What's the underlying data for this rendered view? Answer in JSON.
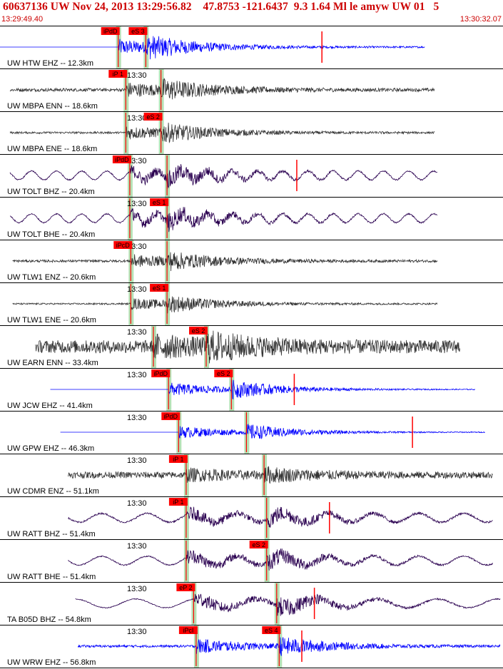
{
  "header": {
    "title": "60637136 UW Nov 24, 2013 13:29:56.82    47.8753 -121.6437  9.3 1.64 Ml le amyw UW 01   5",
    "start_time": "13:29:49.40",
    "end_time": "13:30:32.07"
  },
  "colors": {
    "pick_red": "#ff0000",
    "window_green": "#a8dca8",
    "trace_blue": "#0000ff",
    "trace_dark": "#333333",
    "trace_purple": "#2a0050"
  },
  "chart_data": {
    "type": "seismogram",
    "time_axis": {
      "start": "13:29:49.40",
      "end": "13:30:32.07",
      "tick_label": "13:30"
    },
    "traces": [
      {
        "label": "UW HTW EHZ -- 12.3km",
        "color": "blue",
        "amp": 0.38,
        "noise": 0.04,
        "onset": 0.235,
        "scode": 0.29,
        "t0": 0.0,
        "t1": 0.845,
        "flat_pre": true,
        "period": 0,
        "picks": [
          {
            "label": "iPdD",
            "x": 0.235
          },
          {
            "label": "eS 3",
            "x": 0.29
          }
        ],
        "marks": [
          0.64
        ]
      },
      {
        "label": "UW MBPA ENN -- 18.6km",
        "color": "dark",
        "amp": 0.34,
        "noise": 0.08,
        "onset": 0.25,
        "scode": 0.32,
        "t0": 0.02,
        "t1": 0.865,
        "period": 0,
        "picks": [
          {
            "label": "iP 1",
            "x": 0.25
          }
        ],
        "marks": []
      },
      {
        "label": "UW MBPA ENE -- 18.6km",
        "color": "dark",
        "amp": 0.32,
        "noise": 0.05,
        "onset": 0.25,
        "scode": 0.32,
        "t0": 0.02,
        "t1": 0.865,
        "period": 0,
        "picks": [
          {
            "label": "eS 2",
            "x": 0.32
          }
        ],
        "marks": []
      },
      {
        "label": "UW TOLT BHZ -- 20.4km",
        "color": "purple",
        "amp": 0.3,
        "noise": 0.03,
        "onset": 0.258,
        "scode": 0.332,
        "t0": 0.02,
        "t1": 0.87,
        "period": 0.05,
        "picks": [
          {
            "label": "iPdD",
            "x": 0.258
          }
        ],
        "marks": [
          0.59
        ]
      },
      {
        "label": "UW TOLT BHE -- 20.4km",
        "color": "purple",
        "amp": 0.3,
        "noise": 0.03,
        "onset": 0.258,
        "scode": 0.332,
        "t0": 0.02,
        "t1": 0.87,
        "period": 0.05,
        "picks": [
          {
            "label": "eS 1",
            "x": 0.332
          }
        ],
        "marks": []
      },
      {
        "label": "UW TLW1 ENZ -- 20.6km",
        "color": "dark",
        "amp": 0.3,
        "noise": 0.06,
        "onset": 0.26,
        "scode": 0.332,
        "t0": 0.025,
        "t1": 0.87,
        "period": 0,
        "picks": [
          {
            "label": "iPcD",
            "x": 0.26
          }
        ],
        "marks": []
      },
      {
        "label": "UW TLW1 ENE -- 20.6km",
        "color": "dark",
        "amp": 0.28,
        "noise": 0.04,
        "onset": 0.26,
        "scode": 0.332,
        "t0": 0.025,
        "t1": 0.87,
        "period": 0,
        "picks": [
          {
            "label": "eS 1",
            "x": 0.332
          }
        ],
        "marks": []
      },
      {
        "label": "UW EARN ENN -- 33.4km",
        "color": "dark",
        "amp": 0.4,
        "noise": 0.32,
        "onset": 0.305,
        "scode": 0.41,
        "t0": 0.07,
        "t1": 0.915,
        "period": 0,
        "picks": [
          {
            "label": "eS 2",
            "x": 0.41
          }
        ],
        "marks": []
      },
      {
        "label": "UW JCW EHZ -- 41.4km",
        "color": "blue",
        "amp": 0.34,
        "noise": 0.02,
        "onset": 0.335,
        "scode": 0.46,
        "t0": 0.1,
        "t1": 0.945,
        "flat_pre": true,
        "period": 0,
        "picks": [
          {
            "label": "iPdD",
            "x": 0.335
          },
          {
            "label": "eS 2",
            "x": 0.46
          }
        ],
        "marks": [
          0.585
        ]
      },
      {
        "label": "UW GPW EHZ -- 46.3km",
        "color": "blue",
        "amp": 0.3,
        "noise": 0.02,
        "onset": 0.355,
        "scode": 0.49,
        "t0": 0.12,
        "t1": 0.965,
        "flat_pre": true,
        "period": 0,
        "picks": [
          {
            "label": "iPdD",
            "x": 0.355
          }
        ],
        "marks": [
          0.82
        ]
      },
      {
        "label": "UW CDMR ENZ -- 51.1km",
        "color": "dark",
        "amp": 0.24,
        "noise": 0.16,
        "onset": 0.37,
        "scode": 0.525,
        "t0": 0.135,
        "t1": 0.98,
        "period": 0,
        "picks": [
          {
            "label": "iP 1",
            "x": 0.37
          }
        ],
        "marks": []
      },
      {
        "label": "UW RATT BHZ -- 51.4km",
        "color": "purple",
        "amp": 0.34,
        "noise": 0.04,
        "onset": 0.37,
        "scode": 0.53,
        "t0": 0.135,
        "t1": 0.98,
        "period": 0.09,
        "picks": [
          {
            "label": "iP 1",
            "x": 0.37
          }
        ],
        "marks": [
          0.655
        ]
      },
      {
        "label": "UW RATT BHE -- 51.4km",
        "color": "purple",
        "amp": 0.36,
        "noise": 0.03,
        "onset": 0.37,
        "scode": 0.53,
        "t0": 0.135,
        "t1": 0.98,
        "period": 0.09,
        "picks": [
          {
            "label": "eS 2",
            "x": 0.53
          }
        ],
        "marks": []
      },
      {
        "label": "TA B05D BHZ -- 54.8km",
        "color": "purple",
        "amp": 0.4,
        "noise": 0.02,
        "onset": 0.385,
        "scode": 0.55,
        "t0": 0.15,
        "t1": 0.995,
        "period": 0.12,
        "picks": [
          {
            "label": "eP 2",
            "x": 0.385
          }
        ],
        "marks": [
          0.625
        ]
      },
      {
        "label": "UW WRW EHZ -- 56.8km",
        "color": "blue",
        "amp": 0.34,
        "noise": 0.06,
        "onset": 0.39,
        "scode": 0.555,
        "t0": 0.155,
        "t1": 0.995,
        "period": 0,
        "picks": [
          {
            "label": "iPcI",
            "x": 0.39
          },
          {
            "label": "eS 4",
            "x": 0.555
          }
        ],
        "marks": [
          0.6
        ]
      }
    ]
  }
}
